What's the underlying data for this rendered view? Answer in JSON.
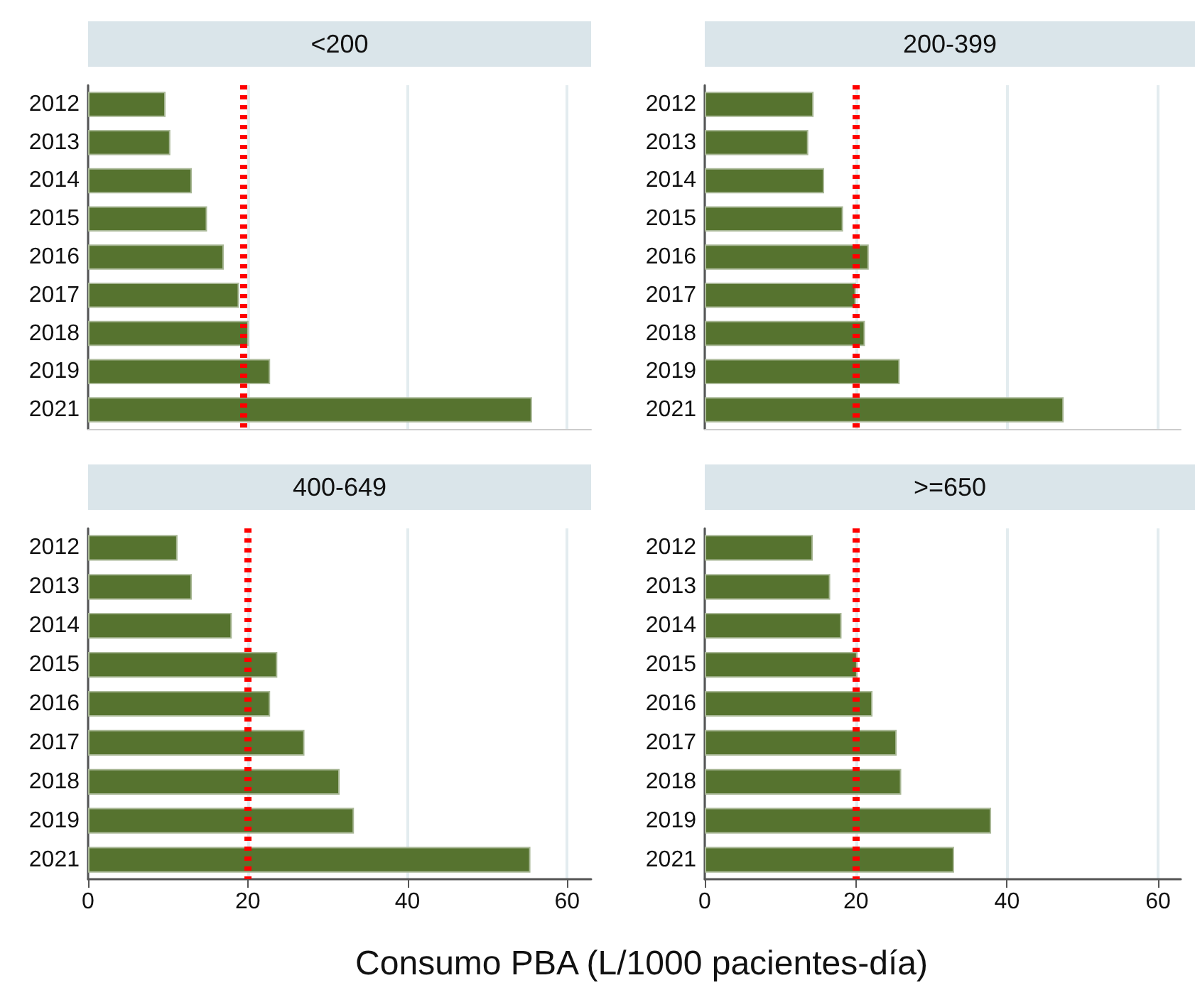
{
  "chart_data": [
    {
      "type": "bar",
      "orientation": "horizontal",
      "title": "<200",
      "categories": [
        "2012",
        "2013",
        "2014",
        "2015",
        "2016",
        "2017",
        "2018",
        "2019",
        "2021"
      ],
      "values": [
        9.7,
        10.3,
        13.0,
        14.9,
        17.0,
        18.9,
        20.1,
        22.8,
        55.6
      ],
      "color": "#56732f",
      "xlim": [
        0,
        63
      ],
      "xticks": [
        0,
        20,
        40,
        60
      ],
      "grid": "x",
      "tick_labels": "y",
      "ref_lines": [
        {
          "axis": "x",
          "value": 19.4,
          "color": "#ff0000",
          "line_style": "dotted"
        }
      ]
    },
    {
      "type": "bar",
      "orientation": "horizontal",
      "title": "200-399",
      "categories": [
        "2012",
        "2013",
        "2014",
        "2015",
        "2016",
        "2017",
        "2018",
        "2019",
        "2021"
      ],
      "values": [
        14.4,
        13.7,
        15.8,
        18.3,
        21.7,
        20.0,
        21.2,
        25.8,
        47.5
      ],
      "color": "#56732f",
      "xlim": [
        0,
        63
      ],
      "xticks": [
        0,
        20,
        40,
        60
      ],
      "grid": "x",
      "tick_labels": "y",
      "ref_lines": [
        {
          "axis": "x",
          "value": 20,
          "color": "#ff0000",
          "line_style": "dotted"
        }
      ]
    },
    {
      "type": "bar",
      "orientation": "horizontal",
      "title": "400-649",
      "xlabel": "Consumo PBA (L/1000 pacientes-día)",
      "categories": [
        "2012",
        "2013",
        "2014",
        "2015",
        "2016",
        "2017",
        "2018",
        "2019",
        "2021"
      ],
      "values": [
        11.2,
        13.0,
        18.0,
        23.7,
        22.8,
        27.1,
        31.5,
        33.3,
        55.4
      ],
      "color": "#56732f",
      "xlim": [
        0,
        63
      ],
      "xticks": [
        0,
        20,
        40,
        60
      ],
      "grid": "x",
      "ref_lines": [
        {
          "axis": "x",
          "value": 20,
          "color": "#ff0000",
          "line_style": "dotted"
        }
      ]
    },
    {
      "type": "bar",
      "orientation": "horizontal",
      "title": ">=650",
      "categories": [
        "2012",
        "2013",
        "2014",
        "2015",
        "2016",
        "2017",
        "2018",
        "2019",
        "2021"
      ],
      "values": [
        14.3,
        16.6,
        18.1,
        20.2,
        22.2,
        25.4,
        26.0,
        37.9,
        33.0
      ],
      "color": "#56732f",
      "xlim": [
        0,
        63
      ],
      "xticks": [
        0,
        20,
        40,
        60
      ],
      "grid": "x",
      "ref_lines": [
        {
          "axis": "x",
          "value": 20,
          "color": "#ff0000",
          "line_style": "dotted"
        }
      ]
    }
  ]
}
